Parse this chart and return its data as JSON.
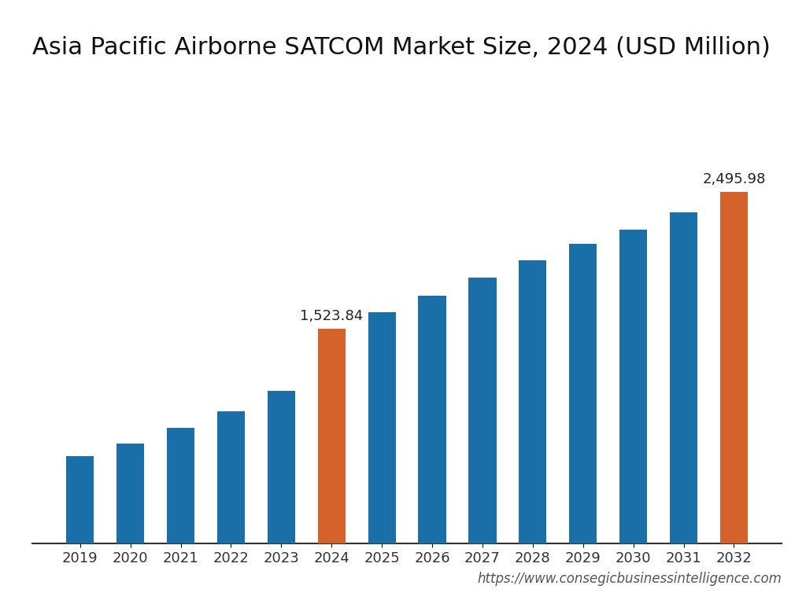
{
  "title": "Asia Pacific Airborne SATCOM Market Size, 2024 (USD Million)",
  "years": [
    2019,
    2020,
    2021,
    2022,
    2023,
    2024,
    2025,
    2026,
    2027,
    2028,
    2029,
    2030,
    2031,
    2032
  ],
  "values": [
    620,
    710,
    820,
    940,
    1085,
    1523.84,
    1640,
    1760,
    1890,
    2010,
    2125,
    2230,
    2350,
    2495.98
  ],
  "bar_colors": [
    "#1b6fa8",
    "#1b6fa8",
    "#1b6fa8",
    "#1b6fa8",
    "#1b6fa8",
    "#d4622a",
    "#1b6fa8",
    "#1b6fa8",
    "#1b6fa8",
    "#1b6fa8",
    "#1b6fa8",
    "#1b6fa8",
    "#1b6fa8",
    "#d4622a"
  ],
  "highlight_labels": [
    "1,523.84",
    "2,495.98"
  ],
  "highlight_indices": [
    5,
    13
  ],
  "watermark": "https://www.consegicbusinessintelligence.com",
  "background_color": "#ffffff",
  "bar_width": 0.55,
  "ylim": [
    0,
    3300
  ],
  "title_fontsize": 22,
  "label_fontsize": 13,
  "tick_fontsize": 13,
  "watermark_fontsize": 12
}
